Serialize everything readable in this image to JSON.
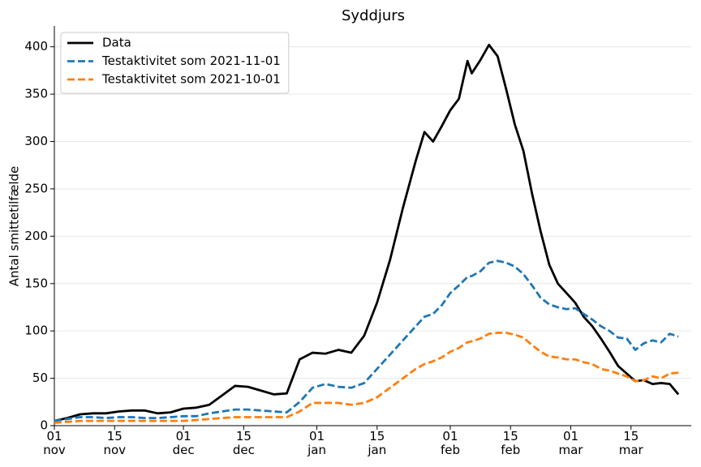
{
  "chart_data": {
    "type": "line",
    "title": "Syddjurs",
    "ylabel": "Antal smittetilfælde",
    "x": [
      "11-01",
      "11-04",
      "11-07",
      "11-10",
      "11-13",
      "11-16",
      "11-19",
      "11-22",
      "11-25",
      "11-28",
      "12-01",
      "12-04",
      "12-07",
      "12-10",
      "12-13",
      "12-16",
      "12-19",
      "12-22",
      "12-25",
      "12-28",
      "12-31",
      "01-03",
      "01-06",
      "01-09",
      "01-12",
      "01-15",
      "01-18",
      "01-21",
      "01-24",
      "01-26",
      "01-28",
      "01-30",
      "02-01",
      "02-03",
      "02-05",
      "02-06",
      "02-08",
      "02-10",
      "02-12",
      "02-14",
      "02-16",
      "02-18",
      "02-20",
      "02-22",
      "02-24",
      "02-26",
      "02-28",
      "03-02",
      "03-04",
      "03-06",
      "03-08",
      "03-10",
      "03-12",
      "03-14",
      "03-16",
      "03-18",
      "03-20",
      "03-22",
      "03-24",
      "03-26"
    ],
    "series": [
      {
        "name": "Data",
        "color": "#000000",
        "dashed": false,
        "values": [
          5,
          8,
          12,
          13,
          13,
          15,
          16,
          16,
          13,
          14,
          18,
          19,
          22,
          32,
          42,
          41,
          37,
          33,
          34,
          70,
          77,
          76,
          80,
          77,
          95,
          130,
          175,
          230,
          280,
          310,
          300,
          316,
          333,
          345,
          385,
          372,
          386,
          402,
          390,
          355,
          318,
          290,
          245,
          205,
          170,
          150,
          140,
          130,
          115,
          105,
          92,
          78,
          63,
          55,
          47,
          48,
          44,
          45,
          44,
          33
        ]
      },
      {
        "name": "Testaktivitet som 2021-11-01",
        "color": "#1f77b4",
        "dashed": true,
        "values": [
          5,
          7,
          9,
          9,
          8,
          9,
          9,
          8,
          8,
          9,
          10,
          10,
          13,
          15,
          17,
          17,
          16,
          15,
          14,
          25,
          40,
          44,
          41,
          40,
          45,
          60,
          75,
          90,
          105,
          115,
          118,
          127,
          140,
          148,
          157,
          158,
          163,
          172,
          174,
          172,
          168,
          160,
          148,
          135,
          128,
          125,
          123,
          124,
          118,
          112,
          105,
          100,
          93,
          92,
          80,
          87,
          90,
          88,
          97,
          94
        ]
      },
      {
        "name": "Testaktivitet som 2021-10-01",
        "color": "#ff7f0e",
        "dashed": true,
        "values": [
          3,
          4,
          5,
          5,
          5,
          5,
          5,
          5,
          5,
          5,
          5,
          6,
          7,
          8,
          9,
          9,
          9,
          9,
          9,
          15,
          24,
          24,
          24,
          22,
          24,
          30,
          40,
          50,
          60,
          65,
          68,
          72,
          78,
          82,
          88,
          89,
          92,
          97,
          98,
          98,
          96,
          93,
          85,
          78,
          73,
          72,
          70,
          70,
          67,
          65,
          60,
          58,
          55,
          52,
          47,
          48,
          52,
          50,
          55,
          56
        ]
      }
    ],
    "xlim": [
      "11-01",
      "03-29"
    ],
    "xticks": [
      {
        "value": "11-01",
        "label": "01\nnov"
      },
      {
        "value": "11-15",
        "label": "15\nnov"
      },
      {
        "value": "12-01",
        "label": "01\ndec"
      },
      {
        "value": "12-15",
        "label": "15\ndec"
      },
      {
        "value": "01-01",
        "label": "01\njan"
      },
      {
        "value": "01-15",
        "label": "15\njan"
      },
      {
        "value": "02-01",
        "label": "01\nfeb"
      },
      {
        "value": "02-15",
        "label": "15\nfeb"
      },
      {
        "value": "03-01",
        "label": "01\nmar"
      },
      {
        "value": "03-15",
        "label": "15\nmar"
      }
    ],
    "ylim": [
      0,
      422
    ],
    "yticks": [
      0,
      50,
      100,
      150,
      200,
      250,
      300,
      350,
      400
    ],
    "grid": true,
    "legend": "upper left"
  }
}
